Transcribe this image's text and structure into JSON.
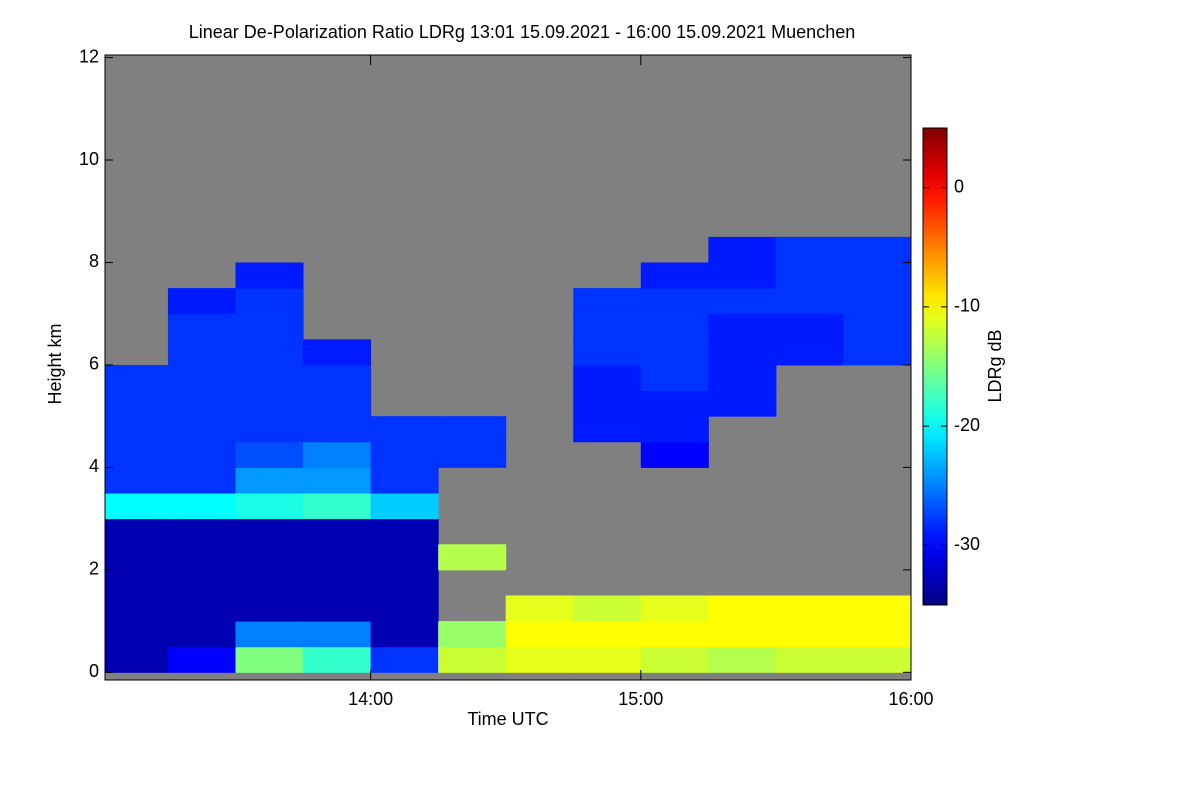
{
  "chart_data": {
    "type": "heatmap",
    "title": "Linear De-Polarization Ratio LDRg   13:01 15.09.2021 - 16:00 15.09.2021 Muenchen",
    "x_label": "Time UTC",
    "y_label": "Height km",
    "colorbar_label": "LDRg dB",
    "xlim": [
      13.017,
      16.0
    ],
    "xticks": [
      {
        "value": 14,
        "label": "14:00"
      },
      {
        "value": 15,
        "label": "15:00"
      },
      {
        "value": 16,
        "label": "16:00"
      }
    ],
    "ylim": [
      -0.15,
      12.05
    ],
    "yticks": [
      0,
      2,
      4,
      6,
      8,
      10,
      12
    ],
    "zlim": [
      -35,
      5
    ],
    "zticks": [
      -30,
      -20,
      -10,
      0
    ],
    "colormap": "jet",
    "background_color": "#808080",
    "x": [
      13.125,
      13.375,
      13.625,
      13.875,
      14.125,
      14.375,
      14.625,
      14.875,
      15.125,
      15.375,
      15.625,
      15.875
    ],
    "y": [
      0.25,
      0.75,
      1.25,
      1.75,
      2.25,
      2.75,
      3.25,
      3.75,
      4.25,
      4.75,
      5.25,
      5.75,
      6.25,
      6.75,
      7.25,
      7.75,
      8.25
    ],
    "z": [
      [
        -33,
        -30,
        -15,
        -18,
        -28,
        -12,
        -11,
        -11,
        -12,
        -13,
        -12,
        -12
      ],
      [
        -33,
        -33,
        -25,
        -25,
        -33,
        -14,
        -10,
        -10,
        -10,
        -10,
        -10,
        -10
      ],
      [
        -33,
        -33,
        -33,
        -33,
        -33,
        null,
        -11,
        -12,
        -11,
        -10,
        -10,
        -10
      ],
      [
        -33,
        -33,
        -33,
        -33,
        -33,
        null,
        null,
        null,
        null,
        null,
        null,
        null
      ],
      [
        -33,
        -33,
        -33,
        -33,
        -33,
        -13,
        null,
        null,
        null,
        null,
        null,
        null
      ],
      [
        -33,
        -33,
        -33,
        -33,
        -33,
        null,
        null,
        null,
        null,
        null,
        null,
        null
      ],
      [
        -20,
        -20,
        -19,
        -18,
        -22,
        null,
        null,
        null,
        null,
        null,
        null,
        null
      ],
      [
        -28,
        -28,
        -24,
        -24,
        -28,
        null,
        null,
        null,
        null,
        null,
        null,
        null
      ],
      [
        -28,
        -28,
        -27,
        -25,
        -28,
        -28,
        null,
        null,
        -30,
        null,
        null,
        null
      ],
      [
        -28,
        -28,
        -28,
        -28,
        -28,
        -28,
        null,
        -29,
        -29,
        null,
        null,
        null
      ],
      [
        -28,
        -28,
        -28,
        -28,
        null,
        null,
        null,
        -29,
        -29,
        -29,
        null,
        null
      ],
      [
        -28,
        -28,
        -28,
        -28,
        null,
        null,
        null,
        -29,
        -28,
        -29,
        null,
        null
      ],
      [
        null,
        -28,
        -28,
        -29,
        null,
        null,
        null,
        -28,
        -28,
        -29,
        -29,
        -28
      ],
      [
        null,
        -28,
        -28,
        null,
        null,
        null,
        null,
        -28,
        -28,
        -29,
        -29,
        -28
      ],
      [
        null,
        -29,
        -28,
        null,
        null,
        null,
        null,
        -28,
        -28,
        -28,
        -28,
        -28
      ],
      [
        null,
        null,
        -29,
        null,
        null,
        null,
        null,
        null,
        -29,
        -29,
        -28,
        -28
      ],
      [
        null,
        null,
        null,
        null,
        null,
        null,
        null,
        null,
        null,
        -29,
        -28,
        -28
      ]
    ]
  }
}
